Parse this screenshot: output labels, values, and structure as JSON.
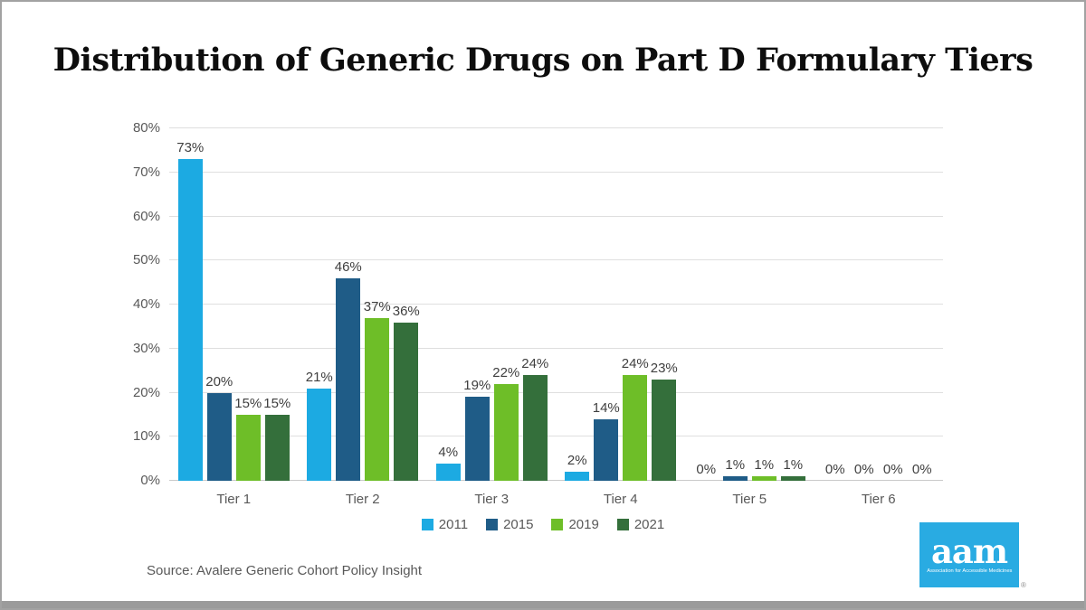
{
  "slide": {
    "title": "Distribution of Generic Drugs on Part D Formulary Tiers",
    "source": "Source: Avalere Generic Cohort Policy Insight",
    "logo": {
      "text": "aam",
      "tagline": "Association for Accessible Medicines",
      "registered": "®",
      "background_color": "#29ABE2"
    }
  },
  "colors": {
    "grid": "#DFDFDF",
    "axis_baseline": "#C9C9C9",
    "tick_label": "#595959",
    "value_label": "#3F3F3F",
    "slide_border": "#A2A2A2",
    "bottom_strip": "#9B9B9B"
  },
  "chart_data": {
    "type": "bar",
    "title": "Distribution of Generic Drugs on Part D Formulary Tiers",
    "categories": [
      "Tier 1",
      "Tier 2",
      "Tier 3",
      "Tier 4",
      "Tier 5",
      "Tier 6"
    ],
    "series": [
      {
        "name": "2011",
        "color": "#1CAAE2",
        "values": [
          73,
          21,
          4,
          2,
          0,
          0
        ]
      },
      {
        "name": "2015",
        "color": "#1F5C87",
        "values": [
          20,
          46,
          19,
          14,
          1,
          0
        ]
      },
      {
        "name": "2019",
        "color": "#6EBE28",
        "values": [
          15,
          37,
          22,
          24,
          1,
          0
        ]
      },
      {
        "name": "2021",
        "color": "#346F3B",
        "values": [
          15,
          36,
          24,
          23,
          1,
          0
        ]
      }
    ],
    "xlabel": "",
    "ylabel": "",
    "ylim": [
      0,
      80
    ],
    "ytick_step": 10,
    "ytick_suffix": "%",
    "value_suffix": "%",
    "grid": true,
    "legend_position": "bottom"
  }
}
